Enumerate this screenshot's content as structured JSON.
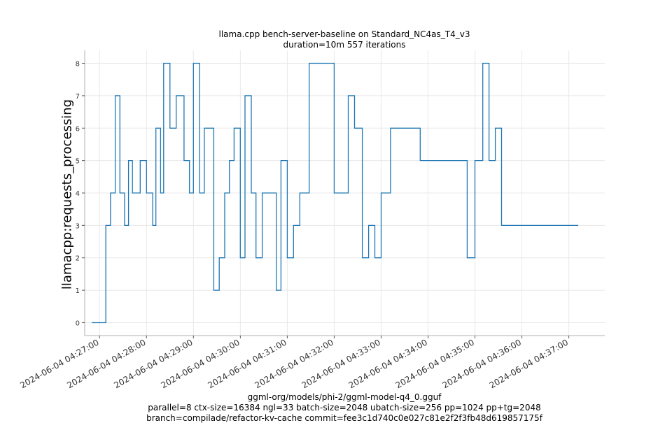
{
  "chart_data": {
    "type": "line",
    "title": "llama.cpp bench-server-baseline on Standard_NC4as_T4_v3",
    "subtitle": "duration=10m 557 iterations",
    "xlabel_lines": [
      "ggml-org/models/phi-2/ggml-model-q4_0.gguf",
      "parallel=8 ctx-size=16384 ngl=33 batch-size=2048 ubatch-size=256 pp=1024 pp+tg=2048",
      "branch=compilade/refactor-kv-cache commit=fee3c1d740c0e027c81e2f2f3fb48d619857175f"
    ],
    "ylabel": "llamacpp:requests_processing",
    "ylim": [
      -0.4,
      8.4
    ],
    "yticks": [
      0,
      1,
      2,
      3,
      4,
      5,
      6,
      7,
      8
    ],
    "xlim": [
      "2024-06-04 04:26:41",
      "2024-06-04 04:37:46"
    ],
    "xticks": [
      "2024-06-04 04:27:00",
      "2024-06-04 04:28:00",
      "2024-06-04 04:29:00",
      "2024-06-04 04:30:00",
      "2024-06-04 04:31:00",
      "2024-06-04 04:32:00",
      "2024-06-04 04:33:00",
      "2024-06-04 04:34:00",
      "2024-06-04 04:35:00",
      "2024-06-04 04:36:00",
      "2024-06-04 04:37:00"
    ],
    "grid": true,
    "color": "#1f77b4",
    "series": [
      {
        "x": [
          "2024-06-04 04:26:50",
          "2024-06-04 04:27:00",
          "2024-06-04 04:27:08",
          "2024-06-04 04:27:10",
          "2024-06-04 04:27:14",
          "2024-06-04 04:27:17",
          "2024-06-04 04:27:20",
          "2024-06-04 04:27:26",
          "2024-06-04 04:27:28",
          "2024-06-04 04:27:32",
          "2024-06-04 04:27:37",
          "2024-06-04 04:27:42",
          "2024-06-04 04:27:48",
          "2024-06-04 04:27:52",
          "2024-06-04 04:28:00",
          "2024-06-04 04:28:08",
          "2024-06-04 04:28:12",
          "2024-06-04 04:28:18",
          "2024-06-04 04:28:22",
          "2024-06-04 04:28:30",
          "2024-06-04 04:28:38",
          "2024-06-04 04:28:48",
          "2024-06-04 04:28:55",
          "2024-06-04 04:29:00",
          "2024-06-04 04:29:08",
          "2024-06-04 04:29:14",
          "2024-06-04 04:29:20",
          "2024-06-04 04:29:26",
          "2024-06-04 04:29:33",
          "2024-06-04 04:29:40",
          "2024-06-04 04:29:46",
          "2024-06-04 04:29:52",
          "2024-06-04 04:30:00",
          "2024-06-04 04:30:06",
          "2024-06-04 04:30:14",
          "2024-06-04 04:30:20",
          "2024-06-04 04:30:28",
          "2024-06-04 04:30:46",
          "2024-06-04 04:30:52",
          "2024-06-04 04:31:00",
          "2024-06-04 04:31:08",
          "2024-06-04 04:31:16",
          "2024-06-04 04:31:22",
          "2024-06-04 04:31:28",
          "2024-06-04 04:31:36",
          "2024-06-04 04:31:46",
          "2024-06-04 04:32:00",
          "2024-06-04 04:32:08",
          "2024-06-04 04:32:18",
          "2024-06-04 04:32:26",
          "2024-06-04 04:32:36",
          "2024-06-04 04:32:44",
          "2024-06-04 04:32:52",
          "2024-06-04 04:33:00",
          "2024-06-04 04:33:12",
          "2024-06-04 04:33:50",
          "2024-06-04 04:34:30",
          "2024-06-04 04:34:50",
          "2024-06-04 04:35:00",
          "2024-06-04 04:35:10",
          "2024-06-04 04:35:18",
          "2024-06-04 04:35:26",
          "2024-06-04 04:35:34",
          "2024-06-04 04:35:42",
          "2024-06-04 04:35:50",
          "2024-06-04 04:36:00",
          "2024-06-04 04:36:18",
          "2024-06-04 04:36:26",
          "2024-06-04 04:36:34",
          "2024-06-04 04:36:42",
          "2024-06-04 04:36:50",
          "2024-06-04 04:37:00",
          "2024-06-04 04:37:08",
          "2024-06-04 04:37:12"
        ],
        "values": [
          0,
          0,
          3,
          3,
          4,
          4,
          7,
          4,
          4,
          3,
          5,
          4,
          4,
          5,
          4,
          3,
          6,
          4,
          8,
          6,
          7,
          5,
          4,
          8,
          4,
          6,
          6,
          1,
          2,
          4,
          5,
          6,
          2,
          7,
          4,
          2,
          4,
          1,
          5,
          2,
          3,
          4,
          4,
          8,
          8,
          8,
          4,
          4,
          7,
          6,
          2,
          3,
          2,
          4,
          6,
          5,
          5,
          2,
          5,
          8,
          5,
          6,
          3,
          3,
          3,
          3,
          3,
          3,
          3,
          3,
          3,
          3,
          3,
          3
        ]
      }
    ]
  }
}
